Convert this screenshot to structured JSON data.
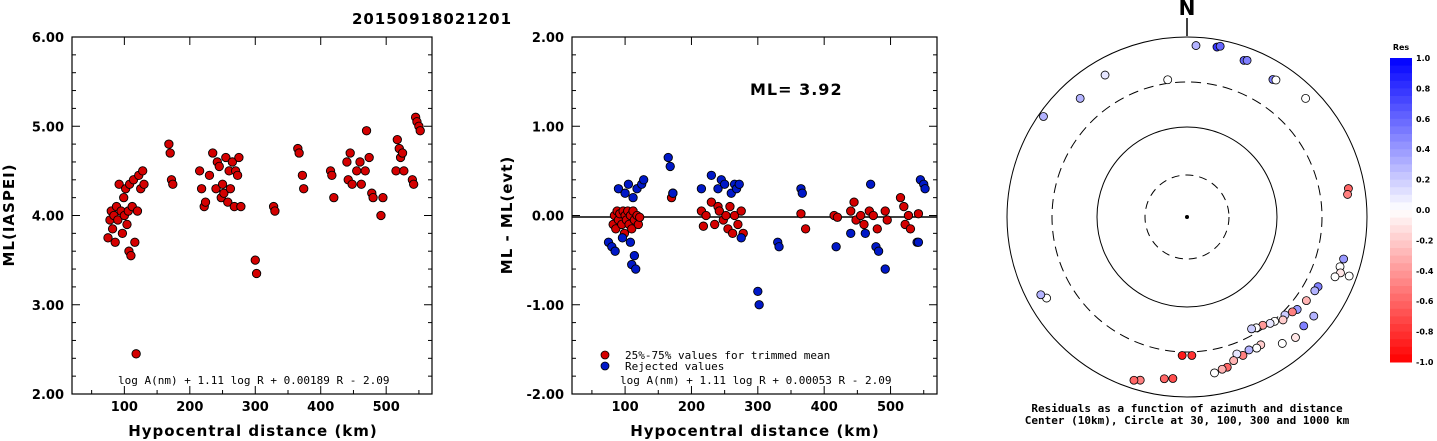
{
  "event_id": "20150918021201",
  "chart_data": [
    {
      "type": "scatter",
      "ylabel": "ML(IASPEI)",
      "xlabel": "Hypocentral distance (km)",
      "xlim": [
        20,
        570
      ],
      "ylim": [
        2.0,
        6.0
      ],
      "xticks": [
        "100",
        "200",
        "300",
        "400",
        "500"
      ],
      "yticks": [
        "2.00",
        "3.00",
        "4.00",
        "5.00",
        "6.00"
      ],
      "formula": "log A(nm) + 1.11 log R + 0.00189 R - 2.09",
      "marker_color": "#d40000",
      "points": [
        [
          75,
          3.75
        ],
        [
          78,
          3.95
        ],
        [
          80,
          4.05
        ],
        [
          82,
          3.85
        ],
        [
          84,
          4.0
        ],
        [
          86,
          3.7
        ],
        [
          88,
          4.1
        ],
        [
          90,
          3.95
        ],
        [
          92,
          4.35
        ],
        [
          95,
          4.05
        ],
        [
          97,
          3.8
        ],
        [
          99,
          4.2
        ],
        [
          100,
          4.0
        ],
        [
          102,
          4.3
        ],
        [
          104,
          3.9
        ],
        [
          106,
          4.05
        ],
        [
          107,
          3.6
        ],
        [
          108,
          4.35
        ],
        [
          110,
          3.55
        ],
        [
          112,
          4.1
        ],
        [
          114,
          4.4
        ],
        [
          116,
          3.7
        ],
        [
          118,
          2.45
        ],
        [
          120,
          4.05
        ],
        [
          122,
          4.45
        ],
        [
          125,
          4.3
        ],
        [
          128,
          4.5
        ],
        [
          130,
          4.35
        ],
        [
          168,
          4.8
        ],
        [
          170,
          4.7
        ],
        [
          172,
          4.4
        ],
        [
          174,
          4.35
        ],
        [
          215,
          4.5
        ],
        [
          218,
          4.3
        ],
        [
          222,
          4.1
        ],
        [
          224,
          4.15
        ],
        [
          230,
          4.45
        ],
        [
          235,
          4.7
        ],
        [
          240,
          4.3
        ],
        [
          242,
          4.6
        ],
        [
          245,
          4.55
        ],
        [
          248,
          4.2
        ],
        [
          250,
          4.35
        ],
        [
          252,
          4.25
        ],
        [
          255,
          4.65
        ],
        [
          258,
          4.15
        ],
        [
          260,
          4.5
        ],
        [
          262,
          4.3
        ],
        [
          265,
          4.6
        ],
        [
          268,
          4.1
        ],
        [
          270,
          4.5
        ],
        [
          273,
          4.45
        ],
        [
          275,
          4.65
        ],
        [
          278,
          4.1
        ],
        [
          300,
          3.5
        ],
        [
          302,
          3.35
        ],
        [
          328,
          4.1
        ],
        [
          330,
          4.05
        ],
        [
          365,
          4.75
        ],
        [
          367,
          4.7
        ],
        [
          372,
          4.45
        ],
        [
          374,
          4.3
        ],
        [
          415,
          4.5
        ],
        [
          417,
          4.45
        ],
        [
          420,
          4.2
        ],
        [
          440,
          4.6
        ],
        [
          442,
          4.4
        ],
        [
          445,
          4.7
        ],
        [
          448,
          4.35
        ],
        [
          455,
          4.5
        ],
        [
          460,
          4.6
        ],
        [
          462,
          4.35
        ],
        [
          468,
          4.5
        ],
        [
          470,
          4.95
        ],
        [
          474,
          4.65
        ],
        [
          478,
          4.25
        ],
        [
          480,
          4.2
        ],
        [
          492,
          4.0
        ],
        [
          495,
          4.2
        ],
        [
          515,
          4.5
        ],
        [
          517,
          4.85
        ],
        [
          520,
          4.75
        ],
        [
          522,
          4.65
        ],
        [
          525,
          4.7
        ],
        [
          527,
          4.5
        ],
        [
          540,
          4.4
        ],
        [
          542,
          4.35
        ],
        [
          545,
          5.1
        ],
        [
          547,
          5.05
        ],
        [
          550,
          5.0
        ],
        [
          552,
          4.95
        ]
      ]
    },
    {
      "type": "scatter",
      "ylabel": "ML - ML(evt)",
      "xlabel": "Hypocentral distance (km)",
      "xlim": [
        20,
        570
      ],
      "ylim": [
        -2.0,
        2.0
      ],
      "xticks": [
        "100",
        "200",
        "300",
        "400",
        "500"
      ],
      "yticks": [
        "-2.00",
        "-1.00",
        "0.00",
        "1.00",
        "2.00"
      ],
      "ml_label": "ML= 3.92",
      "formula": "log A(nm) + 1.11 log R + 0.00053 R - 2.09",
      "legend": [
        {
          "label": "25%-75% values for trimmed mean",
          "color": "#d40000"
        },
        {
          "label": "Rejected values",
          "color": "#0018c8"
        }
      ],
      "series": [
        {
          "name": "25%-75% values for trimmed mean",
          "color": "#d40000",
          "points": [
            [
              82,
              -0.1
            ],
            [
              84,
              0.0
            ],
            [
              86,
              -0.15
            ],
            [
              88,
              0.05
            ],
            [
              90,
              -0.05
            ],
            [
              92,
              0.02
            ],
            [
              95,
              -0.1
            ],
            [
              97,
              0.05
            ],
            [
              99,
              -0.2
            ],
            [
              100,
              0.0
            ],
            [
              102,
              -0.05
            ],
            [
              104,
              0.05
            ],
            [
              106,
              -0.1
            ],
            [
              108,
              0.0
            ],
            [
              110,
              -0.15
            ],
            [
              112,
              0.05
            ],
            [
              114,
              -0.05
            ],
            [
              118,
              0.0
            ],
            [
              120,
              -0.1
            ],
            [
              122,
              -0.02
            ],
            [
              170,
              0.2
            ],
            [
              172,
              0.25
            ],
            [
              215,
              0.05
            ],
            [
              218,
              -0.12
            ],
            [
              222,
              0.0
            ],
            [
              230,
              0.15
            ],
            [
              235,
              -0.1
            ],
            [
              240,
              0.1
            ],
            [
              242,
              0.05
            ],
            [
              248,
              -0.05
            ],
            [
              252,
              0.0
            ],
            [
              255,
              -0.15
            ],
            [
              258,
              0.1
            ],
            [
              262,
              -0.2
            ],
            [
              265,
              0.0
            ],
            [
              270,
              -0.1
            ],
            [
              275,
              0.05
            ],
            [
              278,
              -0.2
            ],
            [
              365,
              0.02
            ],
            [
              372,
              -0.15
            ],
            [
              415,
              0.0
            ],
            [
              420,
              -0.02
            ],
            [
              440,
              0.05
            ],
            [
              445,
              0.15
            ],
            [
              448,
              -0.05
            ],
            [
              455,
              0.0
            ],
            [
              460,
              -0.1
            ],
            [
              468,
              0.05
            ],
            [
              474,
              0.0
            ],
            [
              480,
              -0.15
            ],
            [
              492,
              0.05
            ],
            [
              495,
              -0.05
            ],
            [
              515,
              0.2
            ],
            [
              520,
              0.1
            ],
            [
              522,
              -0.1
            ],
            [
              527,
              0.0
            ],
            [
              530,
              -0.15
            ],
            [
              542,
              0.02
            ]
          ]
        },
        {
          "name": "Rejected values",
          "color": "#0018c8",
          "points": [
            [
              75,
              -0.3
            ],
            [
              80,
              -0.35
            ],
            [
              85,
              -0.4
            ],
            [
              90,
              0.3
            ],
            [
              96,
              -0.25
            ],
            [
              100,
              0.25
            ],
            [
              105,
              0.35
            ],
            [
              108,
              -0.3
            ],
            [
              110,
              -0.55
            ],
            [
              112,
              0.2
            ],
            [
              114,
              -0.45
            ],
            [
              116,
              -0.6
            ],
            [
              118,
              0.3
            ],
            [
              125,
              0.35
            ],
            [
              128,
              0.4
            ],
            [
              165,
              0.65
            ],
            [
              168,
              0.55
            ],
            [
              172,
              0.25
            ],
            [
              215,
              0.3
            ],
            [
              230,
              0.45
            ],
            [
              240,
              0.3
            ],
            [
              245,
              0.4
            ],
            [
              250,
              0.35
            ],
            [
              260,
              0.25
            ],
            [
              265,
              0.35
            ],
            [
              268,
              0.3
            ],
            [
              272,
              0.35
            ],
            [
              275,
              -0.25
            ],
            [
              300,
              -0.85
            ],
            [
              302,
              -1.0
            ],
            [
              330,
              -0.3
            ],
            [
              332,
              -0.35
            ],
            [
              365,
              0.3
            ],
            [
              367,
              0.25
            ],
            [
              418,
              -0.35
            ],
            [
              440,
              -0.2
            ],
            [
              462,
              -0.2
            ],
            [
              470,
              0.35
            ],
            [
              478,
              -0.35
            ],
            [
              482,
              -0.4
            ],
            [
              492,
              -0.6
            ],
            [
              540,
              -0.3
            ],
            [
              542,
              -0.3
            ],
            [
              545,
              0.4
            ],
            [
              550,
              0.35
            ],
            [
              552,
              0.3
            ]
          ]
        }
      ]
    },
    {
      "type": "scatter",
      "subtype": "polar",
      "north_label": "N",
      "caption_line1": "Residuals as a function of azimuth and distance",
      "caption_line2": "Center (10km), Circle at 30, 100, 300 and 1000 km",
      "colorbar": {
        "title": "Res",
        "ticks": [
          "1.0",
          "0.8",
          "0.6",
          "0.4",
          "0.2",
          "0.0",
          "-0.2",
          "-0.4",
          "-0.6",
          "-0.8",
          "-1.0"
        ],
        "positive_color": "#0000ff",
        "negative_color": "#ff0000"
      },
      "points": [
        {
          "az": 3,
          "dist": 800,
          "res": 0.3
        },
        {
          "az": 10,
          "dist": 820,
          "res": 0.8
        },
        {
          "az": 11,
          "dist": 850,
          "res": 0.6
        },
        {
          "az": 20,
          "dist": 700,
          "res": 0.6
        },
        {
          "az": 21,
          "dist": 720,
          "res": 0.5
        },
        {
          "az": 32,
          "dist": 620,
          "res": 0.5
        },
        {
          "az": 33,
          "dist": 640,
          "res": 0.0
        },
        {
          "az": 45,
          "dist": 720,
          "res": 0.0
        },
        {
          "az": 352,
          "dist": 330,
          "res": 0.0
        },
        {
          "az": 330,
          "dist": 650,
          "res": 0.1
        },
        {
          "az": 318,
          "dist": 580,
          "res": 0.3
        },
        {
          "az": 305,
          "dist": 880,
          "res": 0.3
        },
        {
          "az": 80,
          "dist": 650,
          "res": -0.6
        },
        {
          "az": 82,
          "dist": 620,
          "res": -0.5
        },
        {
          "az": 105,
          "dist": 620,
          "res": 0.4
        },
        {
          "az": 108,
          "dist": 600,
          "res": 0.0
        },
        {
          "az": 110,
          "dist": 640,
          "res": -0.1
        },
        {
          "az": 112,
          "dist": 580,
          "res": 0.0
        },
        {
          "az": 118,
          "dist": 430,
          "res": 0.5
        },
        {
          "az": 120,
          "dist": 420,
          "res": 0.3
        },
        {
          "az": 125,
          "dist": 400,
          "res": -0.3
        },
        {
          "az": 130,
          "dist": 380,
          "res": 0.4
        },
        {
          "az": 132,
          "dist": 360,
          "res": -0.5
        },
        {
          "az": 135,
          "dist": 330,
          "res": 0.2
        },
        {
          "az": 137,
          "dist": 350,
          "res": -0.2
        },
        {
          "az": 140,
          "dist": 310,
          "res": 0.0
        },
        {
          "az": 142,
          "dist": 300,
          "res": 0.1
        },
        {
          "az": 145,
          "dist": 280,
          "res": -0.4
        },
        {
          "az": 148,
          "dist": 270,
          "res": 0.0
        },
        {
          "az": 150,
          "dist": 260,
          "res": 0.2
        },
        {
          "az": 150,
          "dist": 420,
          "res": -0.2
        },
        {
          "az": 152,
          "dist": 430,
          "res": 0.0
        },
        {
          "az": 155,
          "dist": 410,
          "res": 0.3
        },
        {
          "az": 158,
          "dist": 440,
          "res": -0.5
        },
        {
          "az": 160,
          "dist": 400,
          "res": 0.1
        },
        {
          "az": 162,
          "dist": 460,
          "res": -0.3
        },
        {
          "az": 165,
          "dist": 520,
          "res": -0.6
        },
        {
          "az": 167,
          "dist": 530,
          "res": -0.3
        },
        {
          "az": 170,
          "dist": 560,
          "res": 0.0
        },
        {
          "az": 178,
          "dist": 330,
          "res": -0.8
        },
        {
          "az": 182,
          "dist": 330,
          "res": -0.9
        },
        {
          "az": 185,
          "dist": 620,
          "res": -0.7
        },
        {
          "az": 188,
          "dist": 640,
          "res": -0.6
        },
        {
          "az": 196,
          "dist": 760,
          "res": -0.5
        },
        {
          "az": 198,
          "dist": 800,
          "res": -0.6
        },
        {
          "az": 128,
          "dist": 600,
          "res": 0.3
        },
        {
          "az": 133,
          "dist": 580,
          "res": 0.5
        },
        {
          "az": 138,
          "dist": 620,
          "res": -0.1
        },
        {
          "az": 143,
          "dist": 560,
          "res": 0.0
        },
        {
          "az": 110,
          "dist": 820,
          "res": 0.0
        },
        {
          "az": 240,
          "dist": 620,
          "res": 0.0
        },
        {
          "az": 242,
          "dist": 680,
          "res": 0.3
        }
      ]
    }
  ]
}
